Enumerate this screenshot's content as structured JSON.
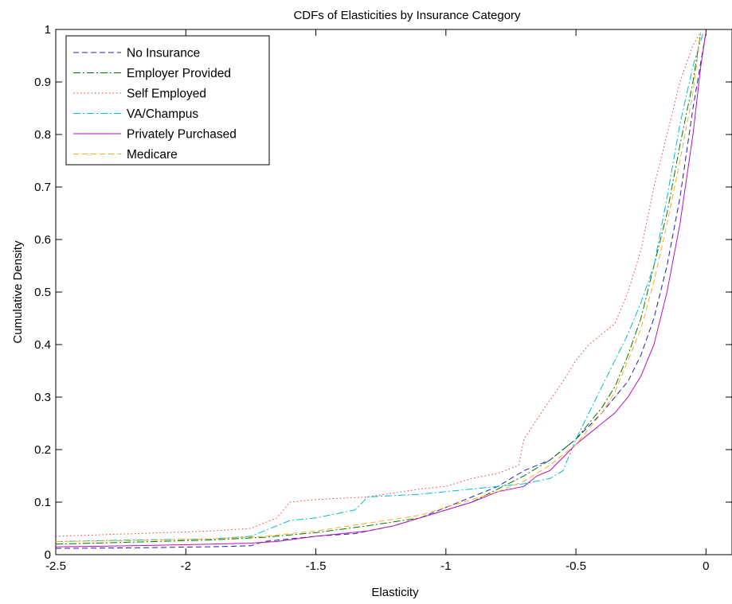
{
  "chart_data": {
    "type": "line",
    "title": "CDFs of Elasticities by Insurance Category",
    "xlabel": "Elasticity",
    "ylabel": "Cumulative Density",
    "xlim": [
      -2.5,
      0.1
    ],
    "ylim": [
      0,
      1
    ],
    "xticks": [
      -2.5,
      -2,
      -1.5,
      -1,
      -0.5,
      0
    ],
    "xtick_labels": [
      "-2.5",
      "-2",
      "-1.5",
      "-1",
      "-0.5",
      "0"
    ],
    "yticks": [
      0,
      0.1,
      0.2,
      0.3,
      0.4,
      0.5,
      0.6,
      0.7,
      0.8,
      0.9,
      1
    ],
    "ytick_labels": [
      "0",
      "0.1",
      "0.2",
      "0.3",
      "0.4",
      "0.5",
      "0.6",
      "0.7",
      "0.8",
      "0.9",
      "1"
    ],
    "grid": false,
    "legend_position": "top-left",
    "series": [
      {
        "name": "No Insurance",
        "color": "#1f1fb4",
        "dash": "7,4",
        "points": [
          [
            -2.5,
            0.012
          ],
          [
            -2.2,
            0.013
          ],
          [
            -1.9,
            0.015
          ],
          [
            -1.75,
            0.017
          ],
          [
            -1.7,
            0.025
          ],
          [
            -1.5,
            0.035
          ],
          [
            -1.35,
            0.04
          ],
          [
            -1.3,
            0.045
          ],
          [
            -1.2,
            0.055
          ],
          [
            -1.1,
            0.07
          ],
          [
            -1.0,
            0.09
          ],
          [
            -0.9,
            0.11
          ],
          [
            -0.8,
            0.13
          ],
          [
            -0.7,
            0.16
          ],
          [
            -0.6,
            0.18
          ],
          [
            -0.5,
            0.22
          ],
          [
            -0.4,
            0.27
          ],
          [
            -0.3,
            0.33
          ],
          [
            -0.25,
            0.38
          ],
          [
            -0.2,
            0.45
          ],
          [
            -0.15,
            0.55
          ],
          [
            -0.1,
            0.68
          ],
          [
            -0.05,
            0.85
          ],
          [
            0.0,
            0.995
          ]
        ]
      },
      {
        "name": "Employer Provided",
        "color": "#007700",
        "dash": "9,3,2,3",
        "points": [
          [
            -2.5,
            0.02
          ],
          [
            -2.2,
            0.024
          ],
          [
            -1.9,
            0.028
          ],
          [
            -1.7,
            0.033
          ],
          [
            -1.5,
            0.042
          ],
          [
            -1.3,
            0.055
          ],
          [
            -1.1,
            0.07
          ],
          [
            -1.0,
            0.085
          ],
          [
            -0.9,
            0.1
          ],
          [
            -0.8,
            0.125
          ],
          [
            -0.7,
            0.15
          ],
          [
            -0.6,
            0.18
          ],
          [
            -0.5,
            0.22
          ],
          [
            -0.4,
            0.28
          ],
          [
            -0.35,
            0.32
          ],
          [
            -0.3,
            0.38
          ],
          [
            -0.25,
            0.45
          ],
          [
            -0.2,
            0.55
          ],
          [
            -0.15,
            0.65
          ],
          [
            -0.1,
            0.78
          ],
          [
            -0.05,
            0.9
          ],
          [
            -0.02,
            0.995
          ]
        ]
      },
      {
        "name": "Self Employed",
        "color": "#ff3333",
        "dash": "1.5,3",
        "points": [
          [
            -2.5,
            0.035
          ],
          [
            -2.2,
            0.04
          ],
          [
            -1.9,
            0.045
          ],
          [
            -1.75,
            0.05
          ],
          [
            -1.65,
            0.07
          ],
          [
            -1.6,
            0.1
          ],
          [
            -1.5,
            0.105
          ],
          [
            -1.3,
            0.11
          ],
          [
            -1.1,
            0.125
          ],
          [
            -1.0,
            0.13
          ],
          [
            -0.9,
            0.145
          ],
          [
            -0.8,
            0.155
          ],
          [
            -0.72,
            0.17
          ],
          [
            -0.7,
            0.22
          ],
          [
            -0.62,
            0.28
          ],
          [
            -0.55,
            0.33
          ],
          [
            -0.5,
            0.37
          ],
          [
            -0.45,
            0.4
          ],
          [
            -0.4,
            0.42
          ],
          [
            -0.35,
            0.44
          ],
          [
            -0.3,
            0.5
          ],
          [
            -0.25,
            0.58
          ],
          [
            -0.2,
            0.7
          ],
          [
            -0.15,
            0.8
          ],
          [
            -0.1,
            0.9
          ],
          [
            -0.05,
            0.97
          ],
          [
            -0.02,
            0.995
          ]
        ]
      },
      {
        "name": "VA/Champus",
        "color": "#00bcd4",
        "dash": "9,3,2,3",
        "points": [
          [
            -2.5,
            0.025
          ],
          [
            -2.2,
            0.028
          ],
          [
            -1.9,
            0.03
          ],
          [
            -1.75,
            0.035
          ],
          [
            -1.7,
            0.045
          ],
          [
            -1.6,
            0.065
          ],
          [
            -1.5,
            0.07
          ],
          [
            -1.35,
            0.085
          ],
          [
            -1.3,
            0.11
          ],
          [
            -1.1,
            0.115
          ],
          [
            -1.0,
            0.12
          ],
          [
            -0.9,
            0.125
          ],
          [
            -0.8,
            0.13
          ],
          [
            -0.7,
            0.135
          ],
          [
            -0.6,
            0.145
          ],
          [
            -0.55,
            0.16
          ],
          [
            -0.5,
            0.22
          ],
          [
            -0.45,
            0.27
          ],
          [
            -0.4,
            0.32
          ],
          [
            -0.35,
            0.37
          ],
          [
            -0.3,
            0.42
          ],
          [
            -0.25,
            0.48
          ],
          [
            -0.2,
            0.55
          ],
          [
            -0.15,
            0.68
          ],
          [
            -0.1,
            0.82
          ],
          [
            -0.05,
            0.93
          ],
          [
            -0.01,
            0.995
          ]
        ]
      },
      {
        "name": "Privately Purchased",
        "color": "#bb11bb",
        "dash": "",
        "points": [
          [
            -2.5,
            0.015
          ],
          [
            -2.2,
            0.017
          ],
          [
            -1.9,
            0.02
          ],
          [
            -1.75,
            0.022
          ],
          [
            -1.65,
            0.025
          ],
          [
            -1.5,
            0.035
          ],
          [
            -1.3,
            0.045
          ],
          [
            -1.2,
            0.055
          ],
          [
            -1.1,
            0.07
          ],
          [
            -1.0,
            0.085
          ],
          [
            -0.9,
            0.1
          ],
          [
            -0.8,
            0.12
          ],
          [
            -0.7,
            0.13
          ],
          [
            -0.65,
            0.15
          ],
          [
            -0.6,
            0.16
          ],
          [
            -0.55,
            0.185
          ],
          [
            -0.5,
            0.21
          ],
          [
            -0.45,
            0.23
          ],
          [
            -0.4,
            0.25
          ],
          [
            -0.35,
            0.27
          ],
          [
            -0.3,
            0.3
          ],
          [
            -0.25,
            0.34
          ],
          [
            -0.2,
            0.4
          ],
          [
            -0.15,
            0.5
          ],
          [
            -0.1,
            0.63
          ],
          [
            -0.05,
            0.8
          ],
          [
            -0.02,
            0.93
          ],
          [
            0.0,
            0.995
          ]
        ]
      },
      {
        "name": "Medicare",
        "color": "#ffaa22",
        "dash": "7,4",
        "points": [
          [
            -2.5,
            0.025
          ],
          [
            -2.2,
            0.027
          ],
          [
            -1.9,
            0.03
          ],
          [
            -1.7,
            0.035
          ],
          [
            -1.5,
            0.045
          ],
          [
            -1.3,
            0.06
          ],
          [
            -1.1,
            0.075
          ],
          [
            -1.0,
            0.09
          ],
          [
            -0.9,
            0.105
          ],
          [
            -0.8,
            0.12
          ],
          [
            -0.7,
            0.14
          ],
          [
            -0.6,
            0.17
          ],
          [
            -0.5,
            0.21
          ],
          [
            -0.4,
            0.27
          ],
          [
            -0.35,
            0.31
          ],
          [
            -0.3,
            0.37
          ],
          [
            -0.25,
            0.43
          ],
          [
            -0.2,
            0.52
          ],
          [
            -0.15,
            0.63
          ],
          [
            -0.1,
            0.75
          ],
          [
            -0.05,
            0.88
          ],
          [
            -0.02,
            0.995
          ]
        ]
      }
    ]
  }
}
